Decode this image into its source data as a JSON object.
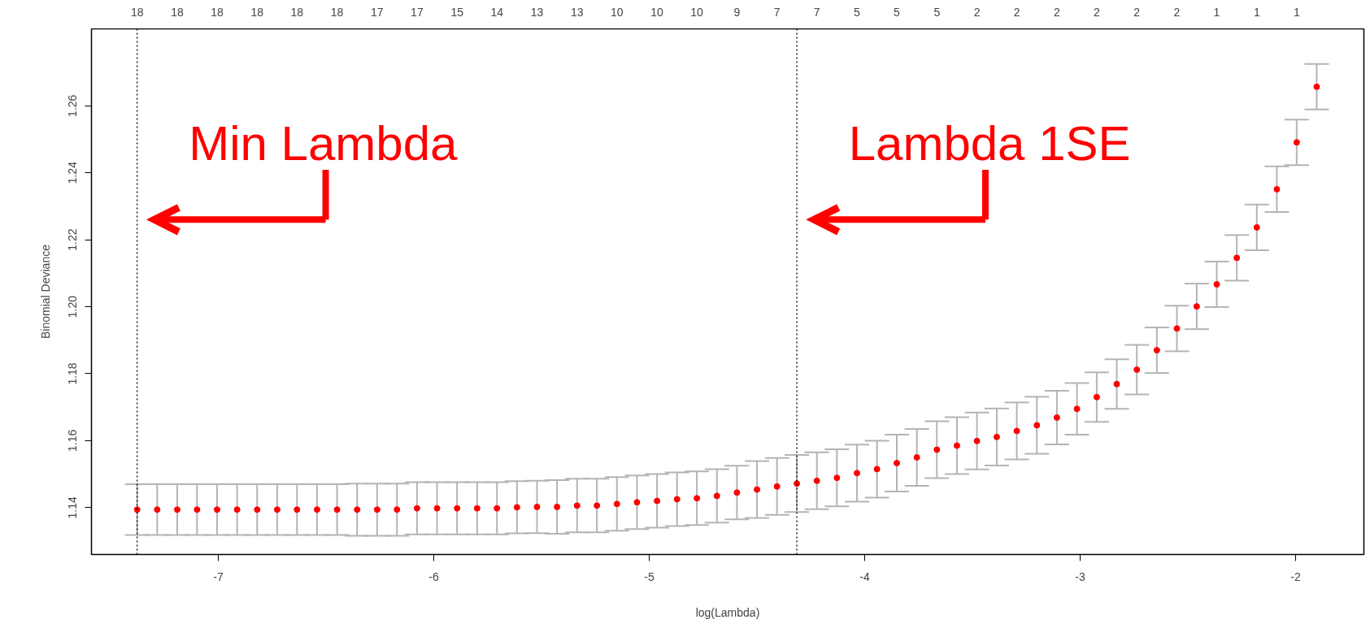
{
  "chart_data": {
    "type": "scatter",
    "xlabel": "log(Lambda)",
    "ylabel": "Binomial Deviance",
    "x": [
      -7.377,
      -7.284,
      -7.191,
      -7.099,
      -7.006,
      -6.913,
      -6.82,
      -6.727,
      -6.635,
      -6.542,
      -6.449,
      -6.356,
      -6.263,
      -6.171,
      -6.078,
      -5.985,
      -5.892,
      -5.799,
      -5.707,
      -5.614,
      -5.521,
      -5.428,
      -5.335,
      -5.243,
      -5.15,
      -5.057,
      -4.964,
      -4.871,
      -4.779,
      -4.686,
      -4.593,
      -4.5,
      -4.407,
      -4.315,
      -4.222,
      -4.129,
      -4.036,
      -3.943,
      -3.851,
      -3.758,
      -3.665,
      -3.572,
      -3.479,
      -3.387,
      -3.294,
      -3.201,
      -3.108,
      -3.015,
      -2.923,
      -2.83,
      -2.737,
      -2.644,
      -2.551,
      -2.459,
      -2.366,
      -2.273,
      -2.18,
      -2.087,
      -1.995,
      -1.902
    ],
    "series": [
      {
        "color": "#ff0000",
        "values": [
          1.1394,
          1.1394,
          1.1394,
          1.1394,
          1.1394,
          1.1394,
          1.1394,
          1.1394,
          1.1394,
          1.1394,
          1.1394,
          1.1394,
          1.1394,
          1.1394,
          1.1398,
          1.1398,
          1.1398,
          1.1398,
          1.1398,
          1.1401,
          1.1402,
          1.1402,
          1.1406,
          1.1406,
          1.1411,
          1.1416,
          1.142,
          1.1425,
          1.1428,
          1.1435,
          1.1445,
          1.1454,
          1.1463,
          1.1472,
          1.148,
          1.1489,
          1.1503,
          1.1515,
          1.1533,
          1.155,
          1.1573,
          1.1585,
          1.1599,
          1.1611,
          1.1629,
          1.1646,
          1.1669,
          1.1695,
          1.173,
          1.1769,
          1.1812,
          1.187,
          1.1935,
          1.2001,
          1.2067,
          1.2146,
          1.2237,
          1.2351,
          1.2491,
          1.2657
        ],
        "errors": [
          0.0076,
          0.0076,
          0.0076,
          0.0076,
          0.0076,
          0.0076,
          0.0076,
          0.0076,
          0.0076,
          0.0076,
          0.0076,
          0.0078,
          0.0078,
          0.0078,
          0.0078,
          0.0078,
          0.0078,
          0.0078,
          0.0078,
          0.0078,
          0.0078,
          0.008,
          0.008,
          0.008,
          0.008,
          0.008,
          0.008,
          0.008,
          0.008,
          0.008,
          0.008,
          0.0085,
          0.0085,
          0.0085,
          0.0085,
          0.0085,
          0.0085,
          0.0085,
          0.0085,
          0.0085,
          0.0085,
          0.0085,
          0.0085,
          0.0085,
          0.0085,
          0.0085,
          0.008,
          0.0077,
          0.0074,
          0.0074,
          0.0074,
          0.0068,
          0.0068,
          0.0068,
          0.0068,
          0.0068,
          0.0068,
          0.0068,
          0.0068,
          0.0068
        ]
      }
    ],
    "marker": "circle",
    "xlim": [
      -7.589,
      -1.683
    ],
    "xticks": [
      -7,
      -6,
      -5,
      -4,
      -3,
      -2
    ],
    "ylim": [
      1.126,
      1.283
    ],
    "yticks": [
      1.14,
      1.16,
      1.18,
      {
        "value": 1.2,
        "label": "1.20"
      },
      1.22,
      1.24,
      1.26
    ],
    "annotations": [
      "18",
      "18",
      "18",
      "18",
      "18",
      "18",
      "17",
      "17",
      "15",
      "14",
      "13",
      "13",
      "10",
      "10",
      "10",
      "9",
      "7",
      "7",
      "5",
      "5",
      "5",
      "2",
      "2",
      "2",
      "2",
      "2",
      "2",
      "1",
      "1",
      "1"
    ],
    "ref_lines": [
      {
        "axis": "x",
        "value": -7.377,
        "label": "Min Lambda",
        "color": "#000000",
        "line_style": "dotted"
      },
      {
        "axis": "x",
        "value": -4.315,
        "label": "Lambda 1SE",
        "color": "#000000",
        "line_style": "dotted"
      }
    ],
    "grid": false
  }
}
